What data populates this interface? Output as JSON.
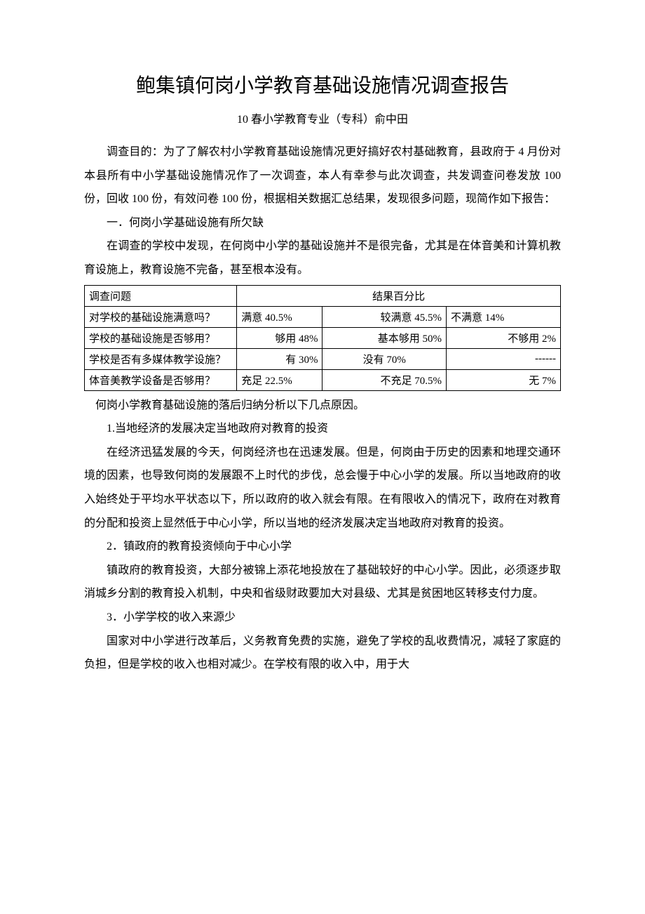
{
  "title": "鲍集镇何岗小学教育基础设施情况调查报告",
  "subtitle": "10 春小学教育专业（专科）俞中田",
  "intro": "调查目的：为了了解农村小学教育基础设施情况更好搞好农村基础教育，县政府于 4 月份对本县所有中小学基础设施情况作了一次调查，本人有幸参与此次调查，共发调查问卷发放 100 份，回收 100 份，有效问卷 100 份，根据相关数据汇总结果，发现很多问题，现简作如下报告：",
  "section1_heading": "一．何岗小学基础设施有所欠缺",
  "section1_p1": "在调查的学校中发现，在何岗中小学的基础设施并不是很完备，尤其是在体音美和计算机教育设施上，教育设施不完备，甚至根本没有。",
  "table": {
    "header_question": "调查问题",
    "header_result": "结果百分比",
    "rows": [
      {
        "q": "对学校的基础设施满意吗？",
        "c1": "满意 40.5%",
        "c2": "较满意 45.5%",
        "c3": "不满意 14%",
        "c1_align": "left",
        "c2_align": "right",
        "c3_align": "left"
      },
      {
        "q": "学校的基础设施是否够用？",
        "c1": "够用 48%",
        "c2": "基本够用 50%",
        "c3": "不够用 2%",
        "c1_align": "right",
        "c2_align": "right",
        "c3_align": "right"
      },
      {
        "q": "学校是否有多媒体教学设施？",
        "c1": "有 30%",
        "c2": "没有 70%",
        "c3": "------",
        "c1_align": "right",
        "c2_align": "center",
        "c3_align": "right"
      },
      {
        "q": "体音美教学设备是否够用？",
        "c1": "充足 22.5%",
        "c2": "不充足 70.5%",
        "c3": "无 7%",
        "c1_align": "left",
        "c2_align": "right",
        "c3_align": "right"
      }
    ]
  },
  "after_table": "何岗小学教育基础设施的落后归纳分析以下几点原因。",
  "point1_heading": "1.当地经济的发展决定当地政府对教育的投资",
  "point1_body": "在经济迅猛发展的今天，何岗经济也在迅速发展。但是，何岗由于历史的因素和地理交通环境的因素，也导致何岗的发展跟不上时代的步伐，总会慢于中心小学的发展。所以当地政府的收入始终处于平均水平状态以下，所以政府的收入就会有限。在有限收入的情况下，政府在对教育的分配和投资上显然低于中心小学，所以当地的经济发展决定当地政府对教育的投资。",
  "point2_heading": "2．镇政府的教育投资倾向于中心小学",
  "point2_body": "镇政府的教育投资，大部分被锦上添花地投放在了基础较好的中心小学。因此，必须逐步取消城乡分割的教育投入机制，中央和省级财政要加大对县级、尤其是贫困地区转移支付力度。",
  "point3_heading": "3．小学学校的收入来源少",
  "point3_body": "国家对中小学进行改革后，义务教育免费的实施，避免了学校的乱收费情况，减轻了家庭的负担，但是学校的收入也相对减少。在学校有限的收入中，用于大"
}
